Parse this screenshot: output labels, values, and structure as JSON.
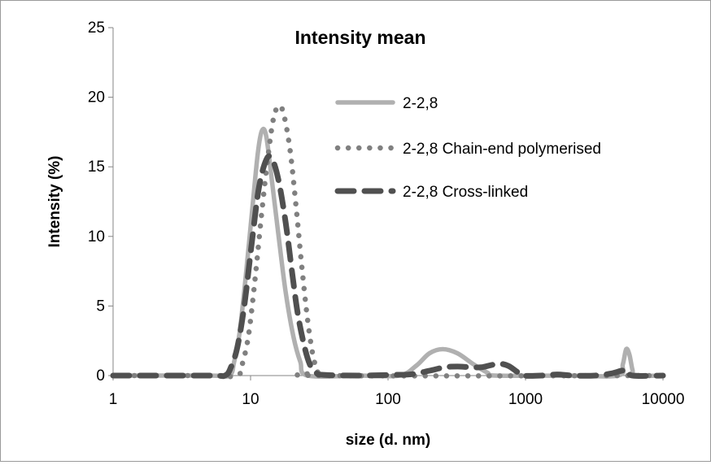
{
  "chart_data": {
    "type": "line",
    "title": "Intensity mean",
    "xlabel": "size (d. nm)",
    "ylabel": "Intensity (%)",
    "x_scale": "log",
    "xlim": [
      1,
      10000
    ],
    "ylim": [
      0,
      25
    ],
    "x_ticks": [
      1,
      10,
      100,
      1000,
      10000
    ],
    "y_ticks": [
      0,
      5,
      10,
      15,
      20,
      25
    ],
    "x_tick_labels": [
      "1",
      "10",
      "100",
      "1000",
      "10000"
    ],
    "y_tick_labels": [
      "0",
      "5",
      "10",
      "15",
      "20",
      "25"
    ],
    "grid": false,
    "legend_position": "top-right",
    "series": [
      {
        "name": "2-2,8",
        "color": "#b0b0b0",
        "style": "solid",
        "points": [
          [
            1,
            0
          ],
          [
            5,
            0
          ],
          [
            7,
            0
          ],
          [
            7.6,
            1
          ],
          [
            8.3,
            3
          ],
          [
            9.2,
            7
          ],
          [
            10.3,
            12
          ],
          [
            11.3,
            16
          ],
          [
            12.1,
            17.6
          ],
          [
            13,
            17.2
          ],
          [
            14.3,
            14
          ],
          [
            16,
            10
          ],
          [
            18,
            6
          ],
          [
            20.5,
            2.8
          ],
          [
            23,
            1
          ],
          [
            26,
            0
          ],
          [
            60,
            0
          ],
          [
            120,
            0
          ],
          [
            160,
            0.7
          ],
          [
            200,
            1.6
          ],
          [
            250,
            1.9
          ],
          [
            320,
            1.6
          ],
          [
            420,
            0.8
          ],
          [
            530,
            0.2
          ],
          [
            600,
            0
          ],
          [
            2000,
            0
          ],
          [
            4700,
            0
          ],
          [
            5100,
            0.8
          ],
          [
            5400,
            1.9
          ],
          [
            5700,
            1.5
          ],
          [
            6000,
            0.4
          ],
          [
            6300,
            0
          ],
          [
            10000,
            0
          ]
        ]
      },
      {
        "name": "2-2,8 Chain-end polymerised",
        "color": "#808080",
        "style": "dotted",
        "points": [
          [
            1,
            0
          ],
          [
            5,
            0
          ],
          [
            8,
            0
          ],
          [
            8.8,
            1
          ],
          [
            9.7,
            3
          ],
          [
            10.8,
            7
          ],
          [
            12,
            11.5
          ],
          [
            13.3,
            15.5
          ],
          [
            14.7,
            18.5
          ],
          [
            16.2,
            19.4
          ],
          [
            17.6,
            18.6
          ],
          [
            19.5,
            16
          ],
          [
            21.5,
            12
          ],
          [
            23.5,
            8
          ],
          [
            26,
            4
          ],
          [
            28.5,
            1.4
          ],
          [
            31,
            0.3
          ],
          [
            34,
            0
          ],
          [
            10000,
            0
          ]
        ]
      },
      {
        "name": "2-2,8 Cross-linked",
        "color": "#505050",
        "style": "dashed",
        "points": [
          [
            1,
            0
          ],
          [
            5,
            0
          ],
          [
            6.5,
            0
          ],
          [
            7.2,
            0.6
          ],
          [
            8,
            2
          ],
          [
            9,
            5
          ],
          [
            10.2,
            9.5
          ],
          [
            11.5,
            13.5
          ],
          [
            13,
            15.5
          ],
          [
            14.3,
            15.6
          ],
          [
            16,
            14
          ],
          [
            18,
            11
          ],
          [
            20,
            7.5
          ],
          [
            22,
            4.5
          ],
          [
            24.5,
            2.2
          ],
          [
            27,
            0.8
          ],
          [
            30,
            0.2
          ],
          [
            34,
            0.05
          ],
          [
            60,
            0
          ],
          [
            110,
            0.05
          ],
          [
            150,
            0.1
          ],
          [
            200,
            0.35
          ],
          [
            260,
            0.6
          ],
          [
            320,
            0.65
          ],
          [
            400,
            0.6
          ],
          [
            480,
            0.6
          ],
          [
            560,
            0.75
          ],
          [
            650,
            0.85
          ],
          [
            750,
            0.7
          ],
          [
            860,
            0.3
          ],
          [
            950,
            0
          ],
          [
            1300,
            0
          ],
          [
            1700,
            0.08
          ],
          [
            2200,
            0
          ],
          [
            3200,
            0
          ],
          [
            4200,
            0.15
          ],
          [
            5000,
            0.35
          ],
          [
            5600,
            0.35
          ],
          [
            6000,
            0
          ],
          [
            10000,
            0
          ]
        ]
      }
    ]
  }
}
